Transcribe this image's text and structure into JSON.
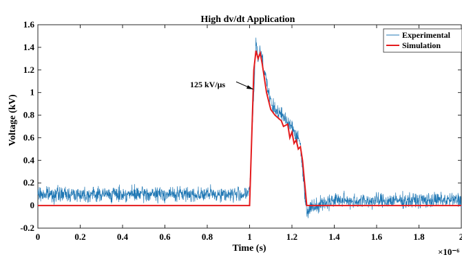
{
  "chart_data": {
    "type": "line",
    "title": "High dv/dt Application",
    "xlabel": "Time (s)",
    "ylabel": "Voltage (kV)",
    "x_multiplier": "×10⁻⁶",
    "xlim": [
      0,
      2
    ],
    "ylim": [
      -0.2,
      1.6
    ],
    "xticks": [
      0,
      0.2,
      0.4,
      0.6,
      0.8,
      1,
      1.2,
      1.4,
      1.6,
      1.8,
      2
    ],
    "xtick_labels": [
      "0",
      "0.2",
      "0.4",
      "0.6",
      "0.8",
      "1",
      "1.2",
      "1.4",
      "1.6",
      "1.8",
      "2"
    ],
    "yticks": [
      -0.2,
      0,
      0.2,
      0.4,
      0.6,
      0.8,
      1,
      1.2,
      1.4,
      1.6
    ],
    "ytick_labels": [
      "-0.2",
      "0",
      "0.2",
      "0.4",
      "0.6",
      "0.8",
      "1",
      "1.2",
      "1.4",
      "1.6"
    ],
    "grid": false,
    "legend_position": "top-right",
    "annotation": {
      "text": "125 kV/μs",
      "x": 1.02,
      "y": 1.13
    },
    "series": [
      {
        "name": "Experimental",
        "color": "#1f77b4",
        "noise_amplitude": 0.05,
        "x": [
          0,
          0.5,
          0.98,
          1.0,
          1.02,
          1.03,
          1.04,
          1.05,
          1.06,
          1.07,
          1.08,
          1.1,
          1.12,
          1.15,
          1.18,
          1.2,
          1.22,
          1.24,
          1.25,
          1.27,
          1.3,
          1.35,
          1.4,
          1.5,
          2.0
        ],
        "y": [
          0.1,
          0.1,
          0.1,
          0.12,
          1.0,
          1.45,
          1.3,
          1.38,
          1.3,
          1.2,
          1.1,
          0.9,
          0.85,
          0.8,
          0.75,
          0.7,
          0.62,
          0.55,
          0.3,
          -0.05,
          0.0,
          0.02,
          0.05,
          0.04,
          0.05
        ]
      },
      {
        "name": "Simulation",
        "color": "#e41a1c",
        "x": [
          0,
          1.0,
          1.02,
          1.03,
          1.04,
          1.05,
          1.06,
          1.08,
          1.1,
          1.12,
          1.15,
          1.16,
          1.18,
          1.19,
          1.2,
          1.21,
          1.22,
          1.23,
          1.24,
          1.25,
          1.27,
          1.3,
          2.0
        ],
        "y": [
          0,
          0,
          1.2,
          1.37,
          1.3,
          1.35,
          1.25,
          1.0,
          0.85,
          0.8,
          0.75,
          0.7,
          0.72,
          0.6,
          0.65,
          0.55,
          0.58,
          0.5,
          0.52,
          0.4,
          0.0,
          0.0,
          0.0
        ]
      }
    ]
  }
}
